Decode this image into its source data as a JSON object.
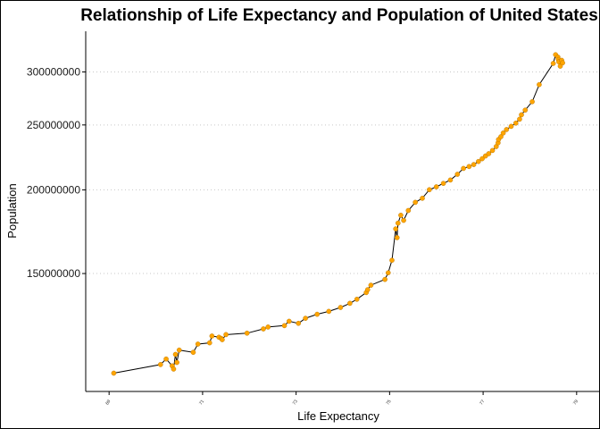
{
  "chart_data": {
    "type": "line",
    "title": "Relationship of Life Expectancy and Population of United States",
    "xlabel": "Life Expectancy",
    "ylabel": "Population",
    "x_scale": "linear",
    "y_scale": "log",
    "xlim": [
      68.5,
      79.5
    ],
    "ylim": [
      100000000,
      345000000
    ],
    "x_ticks": [
      {
        "value": 69,
        "label": "69"
      },
      {
        "value": 71,
        "label": "71"
      },
      {
        "value": 73,
        "label": "73"
      },
      {
        "value": 75,
        "label": "75"
      },
      {
        "value": 77,
        "label": "77"
      },
      {
        "value": 79,
        "label": "79"
      }
    ],
    "y_ticks": [
      {
        "value": 150000000,
        "label": "150000000"
      },
      {
        "value": 200000000,
        "label": "200000000"
      },
      {
        "value": 250000000,
        "label": "250000000"
      },
      {
        "value": 300000000,
        "label": "300000000"
      }
    ],
    "grid": "horizontal dotted",
    "line_color": "#000000",
    "point_color": "#ffa500",
    "series": [
      {
        "x": [
          69.1,
          70.1,
          70.22,
          70.35,
          70.38,
          70.42,
          70.45,
          70.5,
          70.8,
          70.9,
          71.15,
          71.2,
          71.35,
          71.4,
          71.42,
          71.5,
          71.95,
          72.3,
          72.4,
          72.75,
          72.85,
          73.05,
          73.2,
          73.45,
          73.7,
          73.95,
          74.15,
          74.3,
          74.5,
          74.53,
          74.6,
          74.9,
          74.97,
          75.05,
          75.13,
          75.16,
          75.18,
          75.24,
          75.3,
          75.4,
          75.55,
          75.7,
          75.85,
          76.0,
          76.15,
          76.3,
          76.45,
          76.58,
          76.7,
          76.8,
          76.9,
          76.98,
          77.05,
          77.12,
          77.2,
          77.28,
          77.32,
          77.33,
          77.38,
          77.43,
          77.5,
          77.6,
          77.7,
          77.78,
          77.82,
          77.9,
          78.05,
          78.2,
          78.5,
          78.55,
          78.6,
          78.61,
          78.62,
          78.65,
          78.68,
          78.7
        ],
        "y": [
          106500000,
          109700000,
          111800000,
          109200000,
          108000000,
          113600000,
          110500000,
          115300000,
          114400000,
          117700000,
          118200000,
          121000000,
          120500000,
          120000000,
          119500000,
          121600000,
          122200000,
          124000000,
          124800000,
          125400000,
          127300000,
          126400000,
          128600000,
          130400000,
          131700000,
          133500000,
          135400000,
          137300000,
          140500000,
          141900000,
          144100000,
          147000000,
          150400000,
          157000000,
          174900000,
          169700000,
          178400000,
          183300000,
          180100000,
          186300000,
          191600000,
          194300000,
          200100000,
          202100000,
          204500000,
          206900000,
          211000000,
          215300000,
          216700000,
          218200000,
          220500000,
          222600000,
          224700000,
          226500000,
          229000000,
          232100000,
          235100000,
          237800000,
          240100000,
          243200000,
          246100000,
          248800000,
          251600000,
          255000000,
          258900000,
          263100000,
          270800000,
          287200000,
          308900000,
          318300000,
          315700000,
          313100000,
          310600000,
          306000000,
          312200000,
          309500000
        ]
      }
    ]
  }
}
